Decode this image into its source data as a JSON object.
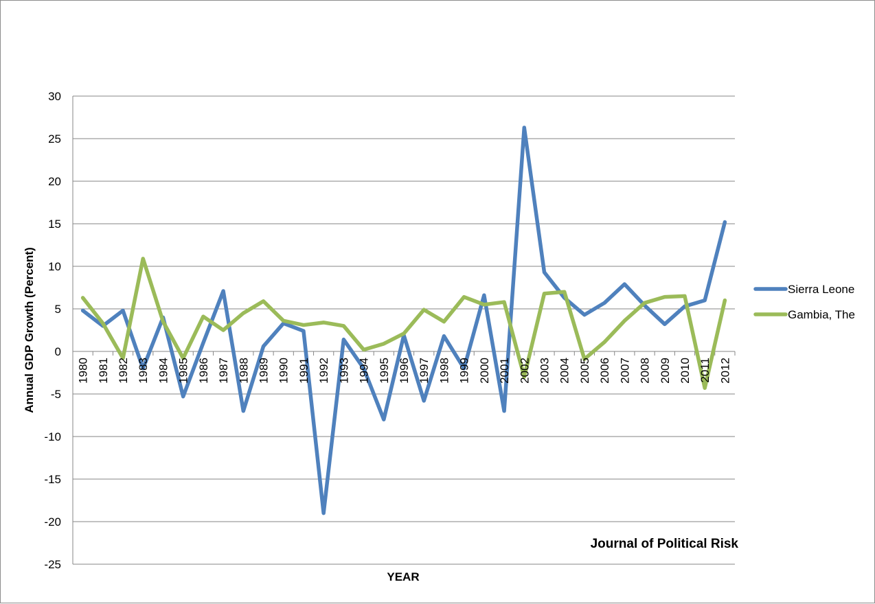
{
  "chart_data": {
    "type": "line",
    "title": "",
    "xlabel": "YEAR",
    "ylabel": "Annual GDP Growth (Percent)",
    "ylim": [
      -25,
      30
    ],
    "yticks": [
      30,
      25,
      20,
      15,
      10,
      5,
      0,
      -5,
      -10,
      -15,
      -20,
      -25
    ],
    "grid": true,
    "legend_position": "right",
    "annotation": "Journal of Political Risk",
    "categories": [
      "1980",
      "1981",
      "1982",
      "1983",
      "1984",
      "1985",
      "1986",
      "1987",
      "1988",
      "1989",
      "1990",
      "1991",
      "1992",
      "1993",
      "1994",
      "1995",
      "1996",
      "1997",
      "1998",
      "1999",
      "2000",
      "2001",
      "2002",
      "2003",
      "2004",
      "2005",
      "2006",
      "2007",
      "2008",
      "2009",
      "2010",
      "2011",
      "2012"
    ],
    "series": [
      {
        "name": "Sierra Leone",
        "color": "#4f81bd",
        "values": [
          4.8,
          3.0,
          4.8,
          -2.0,
          4.0,
          -5.3,
          1.0,
          7.1,
          -7.0,
          0.6,
          3.3,
          2.4,
          -19.0,
          1.4,
          -2.0,
          -8.0,
          1.9,
          -5.8,
          1.8,
          -2.0,
          6.6,
          -7.0,
          26.3,
          9.3,
          6.3,
          4.3,
          5.7,
          7.9,
          5.4,
          3.2,
          5.3,
          6.0,
          15.2
        ]
      },
      {
        "name": "Gambia, The",
        "color": "#9bbb59",
        "values": [
          6.3,
          3.3,
          -0.8,
          10.9,
          3.5,
          -0.8,
          4.1,
          2.5,
          4.5,
          5.9,
          3.6,
          3.1,
          3.4,
          3.0,
          0.2,
          0.9,
          2.1,
          4.9,
          3.5,
          6.4,
          5.5,
          5.8,
          -3.0,
          6.8,
          7.0,
          -0.9,
          1.1,
          3.6,
          5.7,
          6.4,
          6.5,
          -4.3,
          6.0
        ]
      }
    ]
  }
}
